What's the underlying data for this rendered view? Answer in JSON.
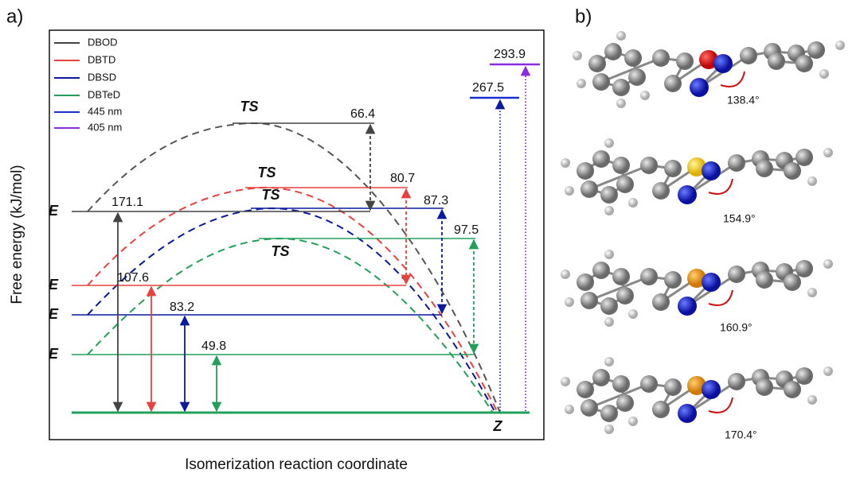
{
  "panel_a": {
    "label": "a)",
    "y_axis_label": "Free energy (kJ/mol)",
    "x_axis_label": "Isomerization reaction coordinate",
    "legend": [
      "DBOD",
      "DBTD",
      "DBSD",
      "DBTeD",
      "445 nm",
      "405 nm"
    ],
    "state_labels": {
      "e": [
        "E",
        "E",
        "E",
        "E"
      ],
      "ts": [
        "TS",
        "TS",
        "TS",
        "TS"
      ],
      "z": "Z"
    },
    "energy_labels": {
      "e_to_z": [
        "171.1",
        "107.6",
        "83.2",
        "49.8"
      ],
      "ts_barriers": [
        "66.4",
        "80.7",
        "87.3",
        "97.5"
      ],
      "excitation": [
        "267.5",
        "293.9"
      ]
    }
  },
  "panel_b": {
    "label": "b)",
    "angles": [
      "138.4°",
      "154.9°",
      "160.9°",
      "170.4°"
    ]
  }
}
